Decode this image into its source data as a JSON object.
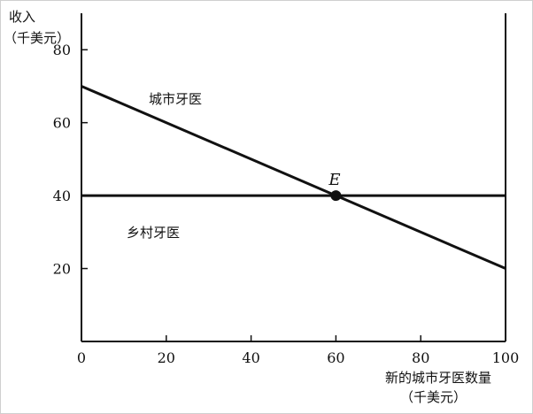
{
  "chart_data": {
    "type": "line",
    "ylabel_lines": [
      "收入",
      "（千美元）"
    ],
    "xlabel_lines": [
      "新的城市牙医数量",
      "（千美元）"
    ],
    "xlim": [
      0,
      100
    ],
    "ylim": [
      0,
      90
    ],
    "x_ticks": [
      0,
      20,
      40,
      60,
      80,
      100
    ],
    "x_tick_labels": [
      "0",
      "20",
      "40",
      "60",
      "80",
      "100"
    ],
    "y_ticks": [
      20,
      40,
      60,
      80
    ],
    "y_tick_labels": [
      "20",
      "40",
      "60",
      "80"
    ],
    "grid": false,
    "series": [
      {
        "name": "城市牙医",
        "x": [
          0,
          100
        ],
        "y": [
          70,
          20
        ]
      },
      {
        "name": "乡村牙医",
        "x": [
          0,
          100
        ],
        "y": [
          40,
          40
        ]
      }
    ],
    "equilibrium": {
      "label": "E",
      "x": 60,
      "y": 40
    }
  },
  "colors": {
    "ink": "#111111",
    "background": "#ffffff"
  }
}
